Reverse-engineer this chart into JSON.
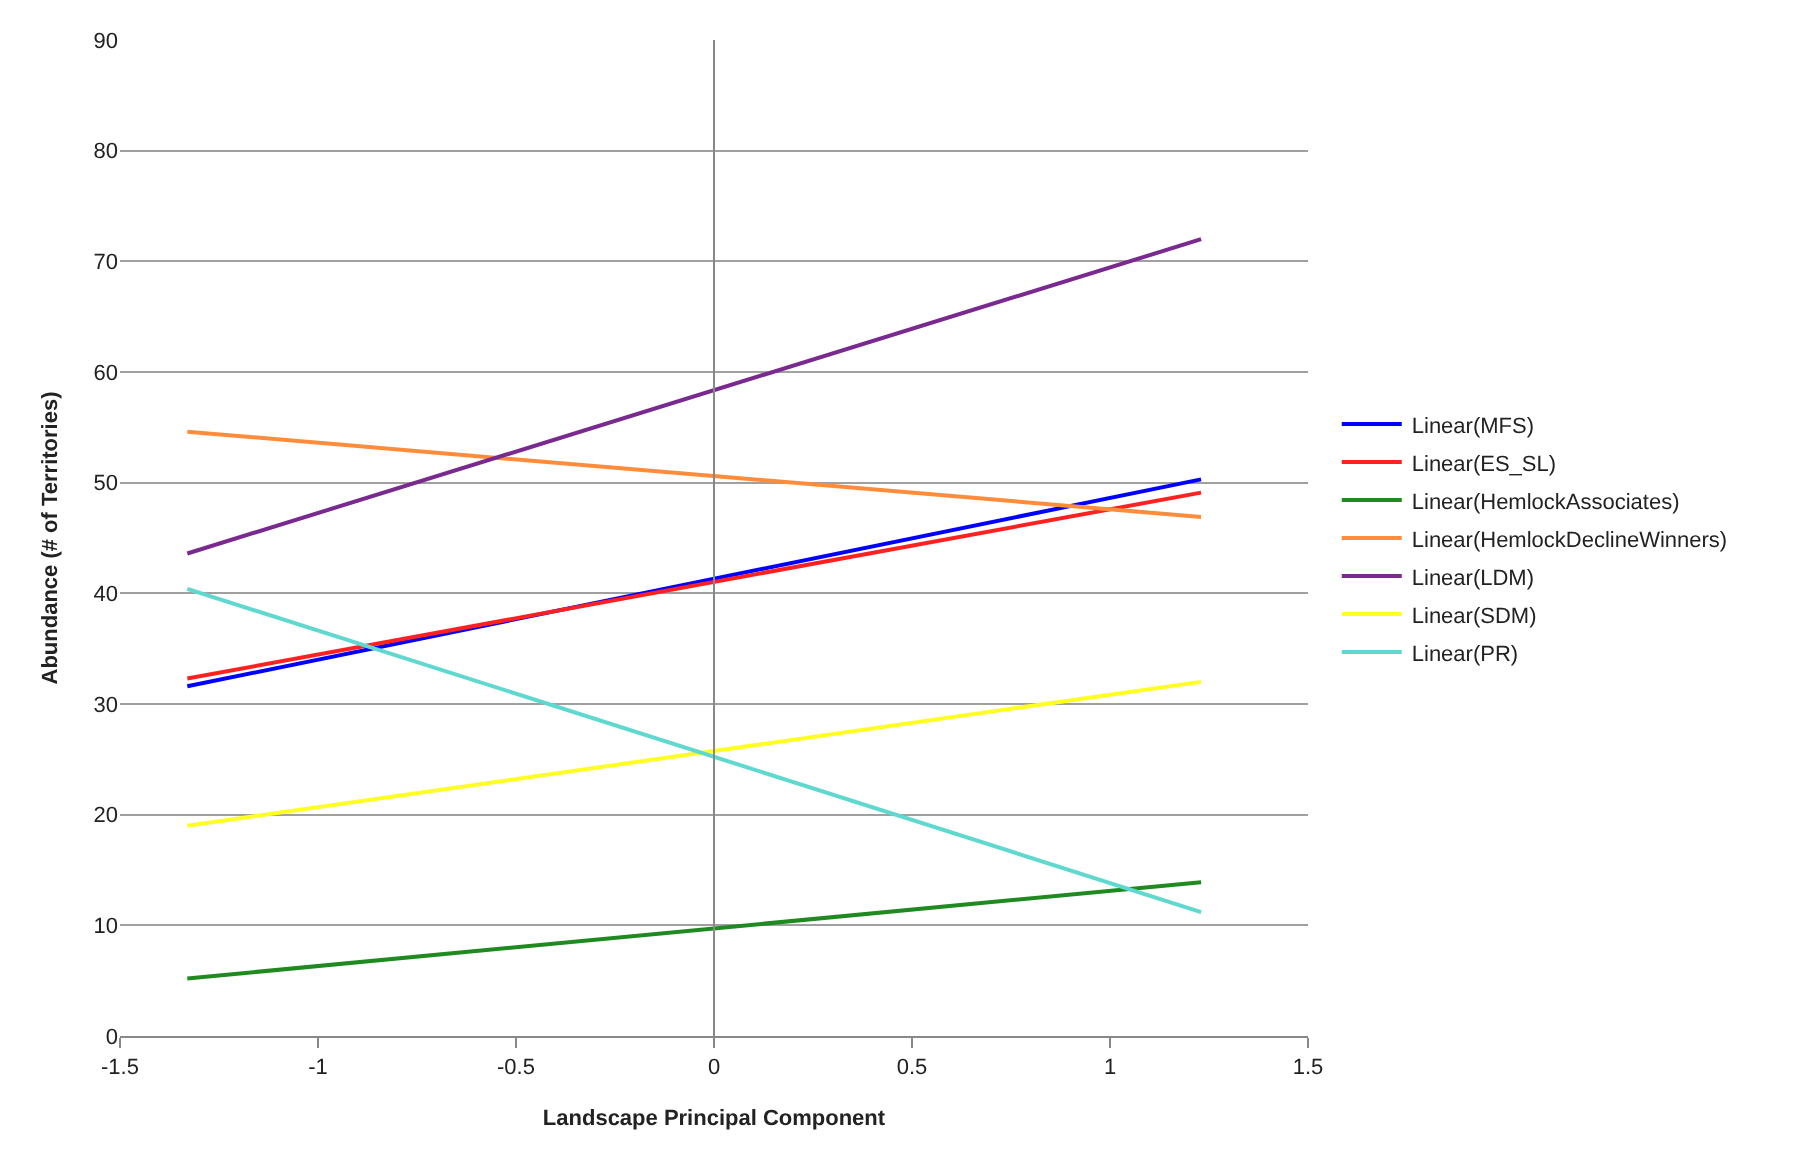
{
  "chart_data": {
    "type": "line",
    "xlabel": "Landscape Principal Component",
    "ylabel": "Abundance (# of Territories)",
    "x": [
      -1.33,
      1.23
    ],
    "series": [
      {
        "name": "Linear(MFS)",
        "color": "#0000ff",
        "values": [
          31.6,
          50.3
        ]
      },
      {
        "name": "Linear(ES_SL)",
        "color": "#ff2020",
        "values": [
          32.3,
          49.1
        ]
      },
      {
        "name": "Linear(HemlockAssociates)",
        "color": "#1f8a1f",
        "values": [
          5.2,
          13.9
        ]
      },
      {
        "name": "Linear(HemlockDeclineWinners)",
        "color": "#ff8c3a",
        "values": [
          54.6,
          46.9
        ]
      },
      {
        "name": "Linear(LDM)",
        "color": "#7a2a8f",
        "values": [
          43.6,
          72.0
        ]
      },
      {
        "name": "Linear(SDM)",
        "color": "#ffff22",
        "values": [
          19.0,
          32.0
        ]
      },
      {
        "name": "Linear(PR)",
        "color": "#5fd8d0",
        "values": [
          40.4,
          11.2
        ]
      }
    ],
    "xlim": [
      -1.5,
      1.5
    ],
    "xticks": [
      -1.5,
      -1,
      -0.5,
      0,
      0.5,
      1,
      1.5
    ],
    "ylim": [
      0,
      90
    ],
    "yticks": [
      0,
      10,
      20,
      30,
      40,
      50,
      60,
      70,
      80,
      90
    ],
    "grid": "y",
    "legend": "right",
    "marker": "none",
    "line_style": "solid"
  }
}
